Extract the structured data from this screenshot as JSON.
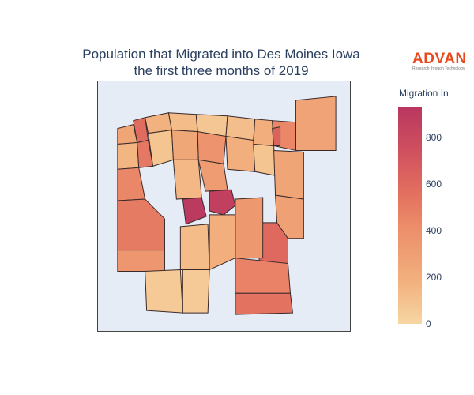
{
  "title": {
    "line1": "Population that Migrated into Des Moines Iowa",
    "line2": "the first three months of 2019"
  },
  "logo": {
    "wordmark": "ADVAN",
    "tagline": "Research through Technology"
  },
  "colorbar": {
    "title": "Migration In",
    "ticks": [
      "800",
      "600",
      "400",
      "200",
      "0"
    ],
    "range": [
      0,
      950
    ],
    "colorscale": [
      "#f6d6a3",
      "#f2b07d",
      "#ec8d6a",
      "#e3705f",
      "#d0505f",
      "#b9375f"
    ]
  },
  "chart_data": {
    "type": "choropleth",
    "title": "Population that Migrated into Des Moines Iowa the first three months of 2019",
    "colorbar_title": "Migration In",
    "zrange": [
      0,
      950
    ],
    "tracts": [
      {
        "id": "ne-rural",
        "value": 260
      },
      {
        "id": "nw-1",
        "value": 250
      },
      {
        "id": "nw-2",
        "value": 600
      },
      {
        "id": "n-1",
        "value": 180
      },
      {
        "id": "n-2",
        "value": 130
      },
      {
        "id": "n-3",
        "value": 80
      },
      {
        "id": "n-4",
        "value": 120
      },
      {
        "id": "ne-1",
        "value": 200
      },
      {
        "id": "ne-2",
        "value": 420
      },
      {
        "id": "ne-3",
        "value": 650
      },
      {
        "id": "w-1",
        "value": 160
      },
      {
        "id": "w-2",
        "value": 520
      },
      {
        "id": "w-3",
        "value": 90
      },
      {
        "id": "w-4",
        "value": 240
      },
      {
        "id": "c-1",
        "value": 350
      },
      {
        "id": "c-2",
        "value": 700
      },
      {
        "id": "c-3",
        "value": 880
      },
      {
        "id": "c-4",
        "value": 930
      },
      {
        "id": "c-5",
        "value": 300
      },
      {
        "id": "c-6",
        "value": 150
      },
      {
        "id": "e-1",
        "value": 200
      },
      {
        "id": "e-2",
        "value": 90
      },
      {
        "id": "e-3",
        "value": 250
      },
      {
        "id": "e-4",
        "value": 610
      },
      {
        "id": "sw-1",
        "value": 420
      },
      {
        "id": "sw-2",
        "value": 500
      },
      {
        "id": "sw-3",
        "value": 330
      },
      {
        "id": "s-1",
        "value": 60
      },
      {
        "id": "s-2",
        "value": 130
      },
      {
        "id": "s-3",
        "value": 200
      },
      {
        "id": "s-4",
        "value": 450
      },
      {
        "id": "se-1",
        "value": 560
      },
      {
        "id": "se-2",
        "value": 320
      },
      {
        "id": "se-3",
        "value": 270
      },
      {
        "id": "s-5",
        "value": 60
      }
    ]
  }
}
